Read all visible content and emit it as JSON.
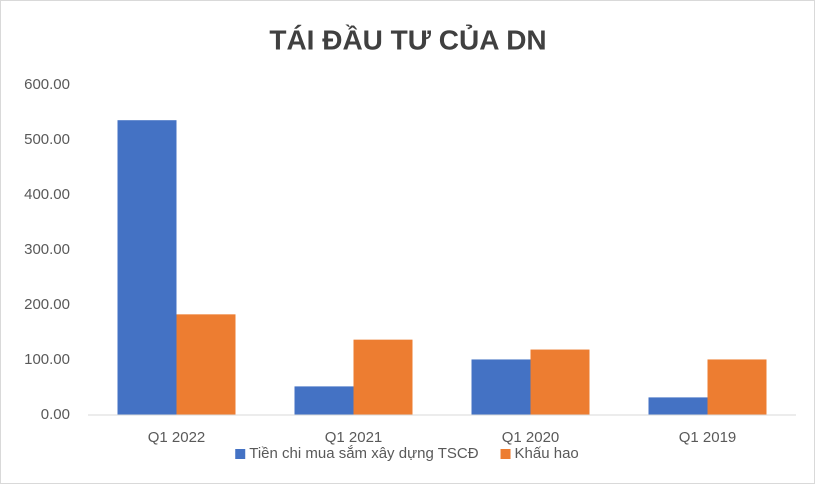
{
  "chart_data": {
    "type": "bar",
    "title": "TÁI ĐẦU TƯ CỦA DN",
    "categories": [
      "Q1 2022",
      "Q1 2021",
      "Q1 2020",
      "Q1 2019"
    ],
    "series": [
      {
        "name": "Tiền chi mua sắm xây dựng TSCĐ",
        "color": "#4472c4",
        "values": [
          536,
          52,
          101,
          32
        ]
      },
      {
        "name": "Khấu hao",
        "color": "#ed7d31",
        "values": [
          183,
          137,
          119,
          101
        ]
      }
    ],
    "ylim": [
      0,
      600
    ],
    "yticks": [
      {
        "value": 0,
        "label": "0.00"
      },
      {
        "value": 100,
        "label": "100.00"
      },
      {
        "value": 200,
        "label": "200.00"
      },
      {
        "value": 300,
        "label": "300.00"
      },
      {
        "value": 400,
        "label": "400.00"
      },
      {
        "value": 500,
        "label": "500.00"
      },
      {
        "value": 600,
        "label": "600.00"
      }
    ],
    "grid": false,
    "legend": "bottom"
  }
}
